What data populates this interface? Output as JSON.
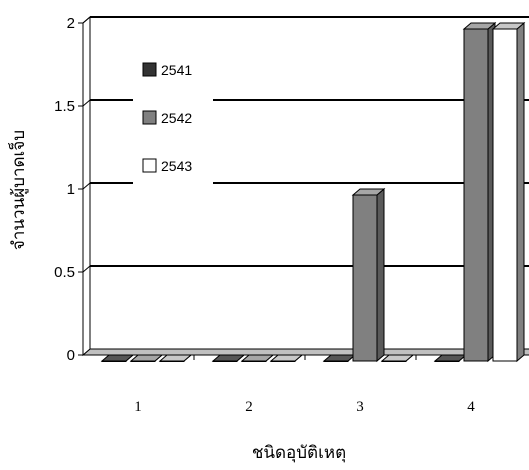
{
  "chart_data": {
    "type": "bar",
    "style": "3d-clustered",
    "categories": [
      "1",
      "2",
      "3",
      "4"
    ],
    "series": [
      {
        "name": "2541",
        "color": "#333333",
        "values": [
          0,
          0,
          0,
          0
        ]
      },
      {
        "name": "2542",
        "color": "#808080",
        "values": [
          0,
          0,
          1,
          2
        ]
      },
      {
        "name": "2543",
        "color": "#ffffff",
        "values": [
          0,
          0,
          0,
          2
        ]
      }
    ],
    "yticks": [
      "0",
      "0.5",
      "1",
      "1.5",
      "2"
    ],
    "ylim": [
      0,
      2
    ],
    "xlabel": "ชนิดอุบัติเหตุ",
    "ylabel": "จำนวนผู้บาดเจ็บ",
    "grid": true,
    "legend": "top-left, inside plot"
  }
}
